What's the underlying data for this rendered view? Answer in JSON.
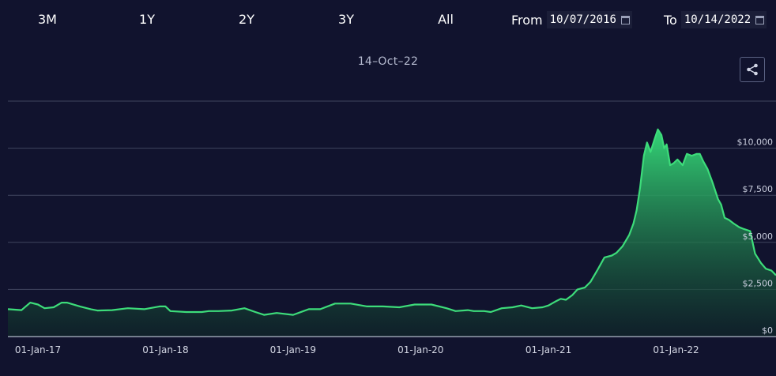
{
  "range_buttons": [
    "3M",
    "1Y",
    "2Y",
    "3Y",
    "All"
  ],
  "date_range": {
    "from_label": "From",
    "from_value": "10/07/2016",
    "to_label": "To",
    "to_value": "10/14/2022"
  },
  "chart_date_label": "14–Oct–22",
  "share_icon": "share-icon",
  "colors": {
    "background": "#11132e",
    "line": "#3ddc7a",
    "grid": "#40445e"
  },
  "chart_data": {
    "type": "area",
    "x_ticks": [
      {
        "date": "2017-01-01",
        "label": "01-Jan-17"
      },
      {
        "date": "2018-01-01",
        "label": "01-Jan-18"
      },
      {
        "date": "2019-01-01",
        "label": "01-Jan-19"
      },
      {
        "date": "2020-01-01",
        "label": "01-Jan-20"
      },
      {
        "date": "2021-01-01",
        "label": "01-Jan-21"
      },
      {
        "date": "2022-01-01",
        "label": "01-Jan-22"
      }
    ],
    "y_ticks": [
      {
        "value": 0,
        "label": "$0"
      },
      {
        "value": 2500,
        "label": "$2,500"
      },
      {
        "value": 5000,
        "label": "$5,000"
      },
      {
        "value": 7500,
        "label": "$7,500"
      },
      {
        "value": 10000,
        "label": "$10,000"
      }
    ],
    "xlim": [
      "2016-10-07",
      "2022-10-14"
    ],
    "ylim": [
      0,
      12500
    ],
    "grid": true,
    "series": [
      {
        "x": [
          "2016-10-07",
          "2016-11-15",
          "2016-12-10",
          "2017-01-01",
          "2017-01-20",
          "2017-02-15",
          "2017-03-10",
          "2017-03-25",
          "2017-05-01",
          "2017-06-01",
          "2017-06-20",
          "2017-08-01",
          "2017-09-15",
          "2017-11-01",
          "2017-12-15",
          "2018-01-01",
          "2018-01-15",
          "2018-03-01",
          "2018-04-15",
          "2018-05-05",
          "2018-06-01",
          "2018-07-10",
          "2018-08-15",
          "2018-09-15",
          "2018-10-10",
          "2018-11-15",
          "2019-01-01",
          "2019-02-15",
          "2019-03-20",
          "2019-05-01",
          "2019-06-15",
          "2019-08-01",
          "2019-09-15",
          "2019-11-01",
          "2019-12-15",
          "2020-02-01",
          "2020-03-15",
          "2020-04-10",
          "2020-05-15",
          "2020-06-01",
          "2020-07-01",
          "2020-07-20",
          "2020-08-20",
          "2020-09-20",
          "2020-10-15",
          "2020-11-15",
          "2020-12-15",
          "2021-01-01",
          "2021-01-20",
          "2021-02-05",
          "2021-02-20",
          "2021-03-10",
          "2021-03-25",
          "2021-04-15",
          "2021-05-01",
          "2021-05-20",
          "2021-06-10",
          "2021-07-01",
          "2021-07-15",
          "2021-08-01",
          "2021-08-20",
          "2021-09-01",
          "2021-09-10",
          "2021-09-20",
          "2021-10-01",
          "2021-10-10",
          "2021-10-20",
          "2021-11-01",
          "2021-11-10",
          "2021-11-20",
          "2021-11-28",
          "2021-12-05",
          "2021-12-15",
          "2021-12-25",
          "2022-01-05",
          "2022-01-20",
          "2022-02-01",
          "2022-02-15",
          "2022-03-01",
          "2022-03-10",
          "2022-03-20",
          "2022-04-01",
          "2022-04-15",
          "2022-05-01",
          "2022-05-10",
          "2022-05-20",
          "2022-06-01",
          "2022-06-15",
          "2022-07-01",
          "2022-07-15",
          "2022-08-01",
          "2022-08-15",
          "2022-09-01",
          "2022-09-15",
          "2022-10-01",
          "2022-10-14"
        ],
        "y": [
          1450,
          1400,
          1800,
          1700,
          1500,
          1550,
          1800,
          1800,
          1600,
          1450,
          1380,
          1400,
          1500,
          1450,
          1600,
          1600,
          1350,
          1300,
          1300,
          1350,
          1350,
          1380,
          1500,
          1300,
          1150,
          1250,
          1150,
          1450,
          1450,
          1750,
          1750,
          1600,
          1600,
          1550,
          1700,
          1700,
          1500,
          1350,
          1400,
          1350,
          1350,
          1300,
          1500,
          1550,
          1650,
          1500,
          1550,
          1650,
          1850,
          2000,
          1950,
          2200,
          2500,
          2600,
          2900,
          3500,
          4200,
          4300,
          4450,
          4800,
          5400,
          6000,
          6700,
          7900,
          9600,
          10300,
          9800,
          10500,
          11000,
          10700,
          10000,
          10200,
          9100,
          9200,
          9400,
          9100,
          9700,
          9600,
          9700,
          9700,
          9300,
          8900,
          8200,
          7300,
          7000,
          6300,
          6200,
          6000,
          5800,
          5700,
          5600,
          4400,
          3900,
          3600,
          3500,
          3250
        ]
      }
    ]
  }
}
